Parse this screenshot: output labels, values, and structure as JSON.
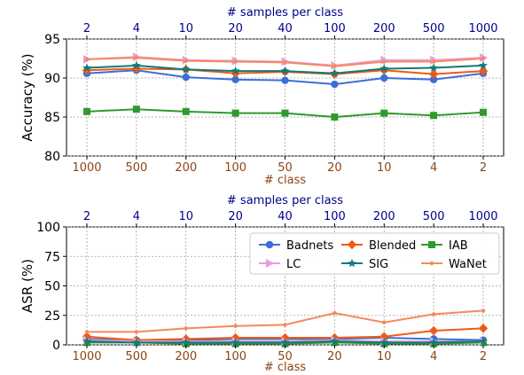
{
  "chart_data": [
    {
      "type": "line",
      "title": "",
      "xlabel": "# class",
      "ylabel": "Accuracy (%)",
      "top_xlabel": "# samples per class",
      "categories": [
        "1000",
        "500",
        "200",
        "100",
        "50",
        "20",
        "10",
        "4",
        "2"
      ],
      "top_categories": [
        "2",
        "4",
        "10",
        "20",
        "40",
        "100",
        "200",
        "500",
        "1000"
      ],
      "ylim": [
        80,
        95
      ],
      "yticks": [
        "80",
        "85",
        "90",
        "95"
      ],
      "grid": true,
      "legend": "",
      "series": [
        {
          "name": "Badnets",
          "color": "#3b6fd6",
          "marker": "circle",
          "values": [
            90.6,
            91.0,
            90.1,
            89.8,
            89.7,
            89.2,
            90.0,
            89.8,
            90.6
          ]
        },
        {
          "name": "Blended",
          "color": "#f05a16",
          "marker": "diamond",
          "values": [
            91.0,
            91.2,
            91.1,
            90.6,
            90.8,
            90.5,
            91.0,
            90.5,
            90.9
          ]
        },
        {
          "name": "IAB",
          "color": "#2e9a2e",
          "marker": "square",
          "values": [
            85.7,
            86.0,
            85.7,
            85.5,
            85.5,
            85.0,
            85.5,
            85.2,
            85.6
          ]
        },
        {
          "name": "LC",
          "color": "#e79ee0",
          "marker": "triangle-right",
          "values": [
            92.4,
            92.7,
            92.3,
            92.2,
            92.1,
            91.6,
            92.3,
            92.3,
            92.6
          ]
        },
        {
          "name": "SIG",
          "color": "#117a7a",
          "marker": "star",
          "values": [
            91.3,
            91.6,
            91.1,
            90.9,
            90.9,
            90.6,
            91.2,
            91.3,
            91.6
          ]
        },
        {
          "name": "WaNet",
          "color": "#f48a5a",
          "marker": "dot",
          "values": [
            92.4,
            92.6,
            92.2,
            92.1,
            92.0,
            91.5,
            92.1,
            92.1,
            92.5
          ]
        }
      ]
    },
    {
      "type": "line",
      "title": "",
      "xlabel": "# class",
      "ylabel": "ASR (%)",
      "top_xlabel": "# samples per class",
      "categories": [
        "1000",
        "500",
        "200",
        "100",
        "50",
        "20",
        "10",
        "4",
        "2"
      ],
      "top_categories": [
        "2",
        "4",
        "10",
        "20",
        "40",
        "100",
        "200",
        "500",
        "1000"
      ],
      "ylim": [
        0,
        100
      ],
      "yticks": [
        "0",
        "25",
        "50",
        "75",
        "100"
      ],
      "grid": true,
      "legend": "top-right",
      "series": [
        {
          "name": "Badnets",
          "color": "#3b6fd6",
          "marker": "circle",
          "values": [
            5,
            4,
            4,
            5,
            5,
            5,
            6,
            5,
            4
          ]
        },
        {
          "name": "Blended",
          "color": "#f05a16",
          "marker": "diamond",
          "values": [
            7,
            4,
            5,
            6,
            6,
            6,
            7,
            12,
            14
          ]
        },
        {
          "name": "IAB",
          "color": "#2e9a2e",
          "marker": "square",
          "values": [
            2,
            2,
            1,
            1,
            1,
            2,
            1,
            1,
            2
          ]
        },
        {
          "name": "LC",
          "color": "#e79ee0",
          "marker": "triangle-right",
          "values": [
            4,
            3,
            3,
            3,
            3,
            4,
            3,
            3,
            3
          ]
        },
        {
          "name": "SIG",
          "color": "#117a7a",
          "marker": "star",
          "values": [
            3,
            2,
            2,
            2,
            2,
            3,
            2,
            2,
            3
          ]
        },
        {
          "name": "WaNet",
          "color": "#f48a5a",
          "marker": "dot",
          "values": [
            11,
            11,
            14,
            16,
            17,
            27,
            19,
            26,
            29
          ]
        }
      ]
    }
  ]
}
